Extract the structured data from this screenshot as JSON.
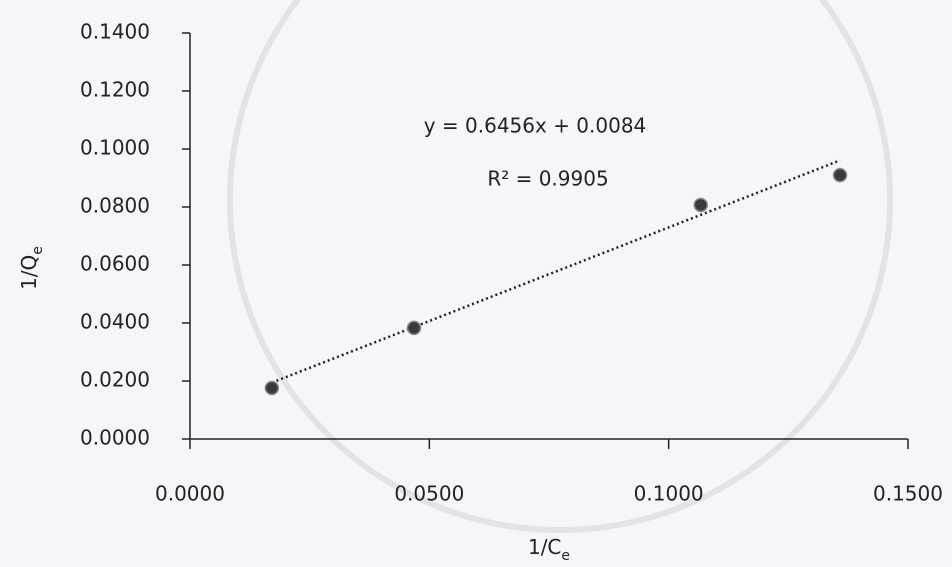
{
  "chart_data": {
    "type": "scatter",
    "xlabel": {
      "text": "1/C",
      "sub": "e"
    },
    "ylabel": {
      "text": "1/Q",
      "sub": "e"
    },
    "series": [
      {
        "color": "#3a3a3e",
        "x": [
          0.0171,
          0.0468,
          0.1067,
          0.1358
        ],
        "values": [
          0.0176,
          0.0383,
          0.0807,
          0.091
        ]
      }
    ],
    "trendline": {
      "slope": 0.6456,
      "intercept": 0.0084,
      "equation": "y = 0.6456x + 0.0084",
      "r2": "R² = 0.9905",
      "color": "#222222"
    },
    "xlim": [
      0,
      0.15
    ],
    "ylim": [
      0,
      0.14
    ],
    "xticks": [
      {
        "value": 0,
        "label": "0.0000"
      },
      {
        "value": 0.05,
        "label": "0.0500"
      },
      {
        "value": 0.1,
        "label": "0.1000"
      },
      {
        "value": 0.15,
        "label": "0.1500"
      }
    ],
    "yticks": [
      {
        "value": 0,
        "label": "0.0000"
      },
      {
        "value": 0.02,
        "label": "0.0200"
      },
      {
        "value": 0.04,
        "label": "0.0400"
      },
      {
        "value": 0.06,
        "label": "0.0600"
      },
      {
        "value": 0.08,
        "label": "0.0800"
      },
      {
        "value": 0.1,
        "label": "0.1000"
      },
      {
        "value": 0.12,
        "label": "0.1200"
      },
      {
        "value": 0.14,
        "label": "0.1400"
      }
    ]
  }
}
